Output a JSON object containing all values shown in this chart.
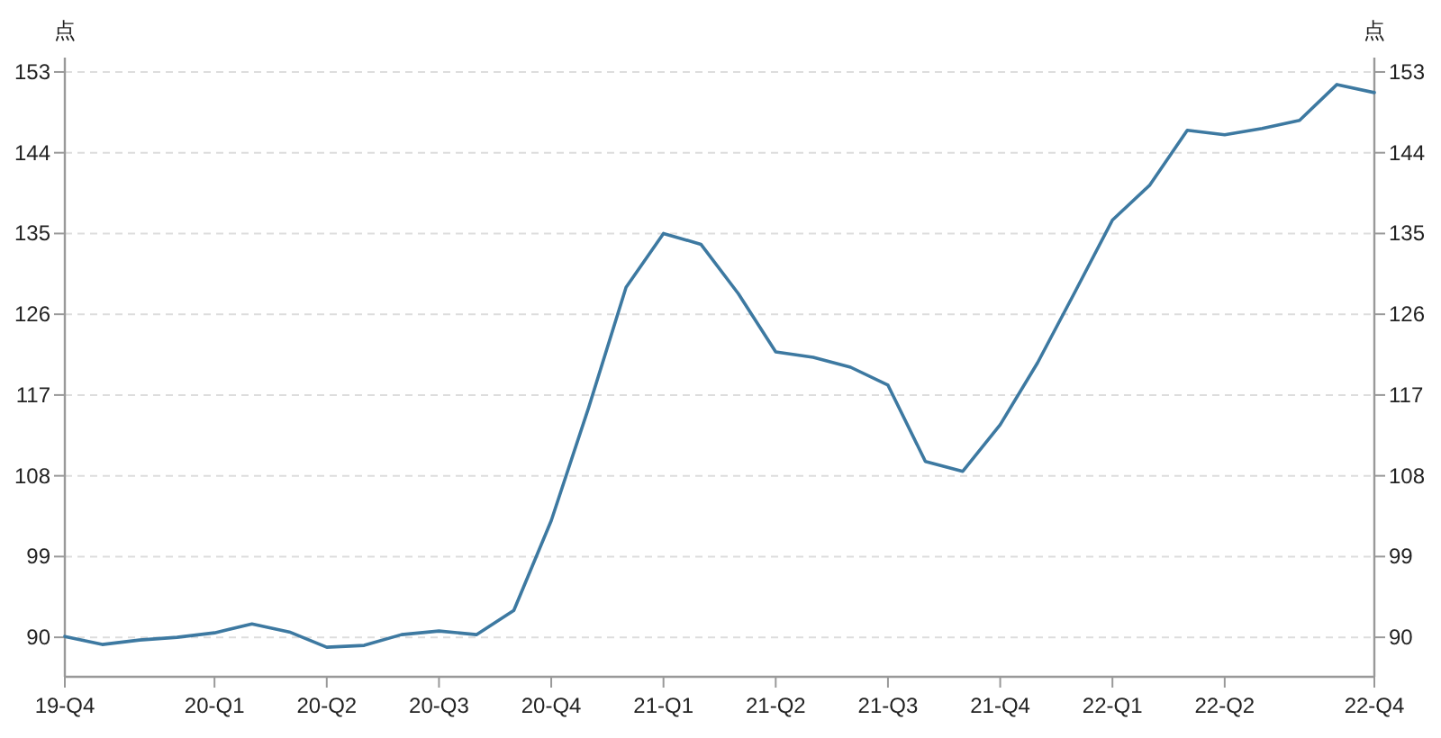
{
  "chart_data": {
    "type": "line",
    "ylabel": "点",
    "y2label": "点",
    "categories": [
      "19-Q4",
      null,
      null,
      null,
      "20-Q1",
      null,
      null,
      "20-Q2",
      null,
      null,
      "20-Q3",
      null,
      null,
      "20-Q4",
      null,
      null,
      "21-Q1",
      null,
      null,
      "21-Q2",
      null,
      null,
      "21-Q3",
      null,
      null,
      "21-Q4",
      null,
      null,
      "22-Q1",
      null,
      null,
      "22-Q2",
      null,
      null,
      null,
      "22-Q4"
    ],
    "series": [
      {
        "color": "#3d79a1",
        "values": [
          90.1,
          89.2,
          89.7,
          90.0,
          90.5,
          91.5,
          90.6,
          88.9,
          89.1,
          90.3,
          90.7,
          90.3,
          93.0,
          103.0,
          115.6,
          129.0,
          135.0,
          133.8,
          128.3,
          121.8,
          121.2,
          120.1,
          118.1,
          109.6,
          108.5,
          113.7,
          120.6,
          128.5,
          136.5,
          140.4,
          146.5,
          146.0,
          146.7,
          147.6,
          151.6,
          150.7
        ]
      }
    ],
    "ylim": [
      85.6,
      154.6
    ],
    "yticks": [
      90,
      99,
      108,
      117,
      126,
      135,
      144,
      153
    ],
    "y2lim": [
      85.6,
      154.6
    ],
    "y2ticks": [
      90,
      99,
      108,
      117,
      126,
      135,
      144,
      153
    ],
    "grid": "y"
  }
}
